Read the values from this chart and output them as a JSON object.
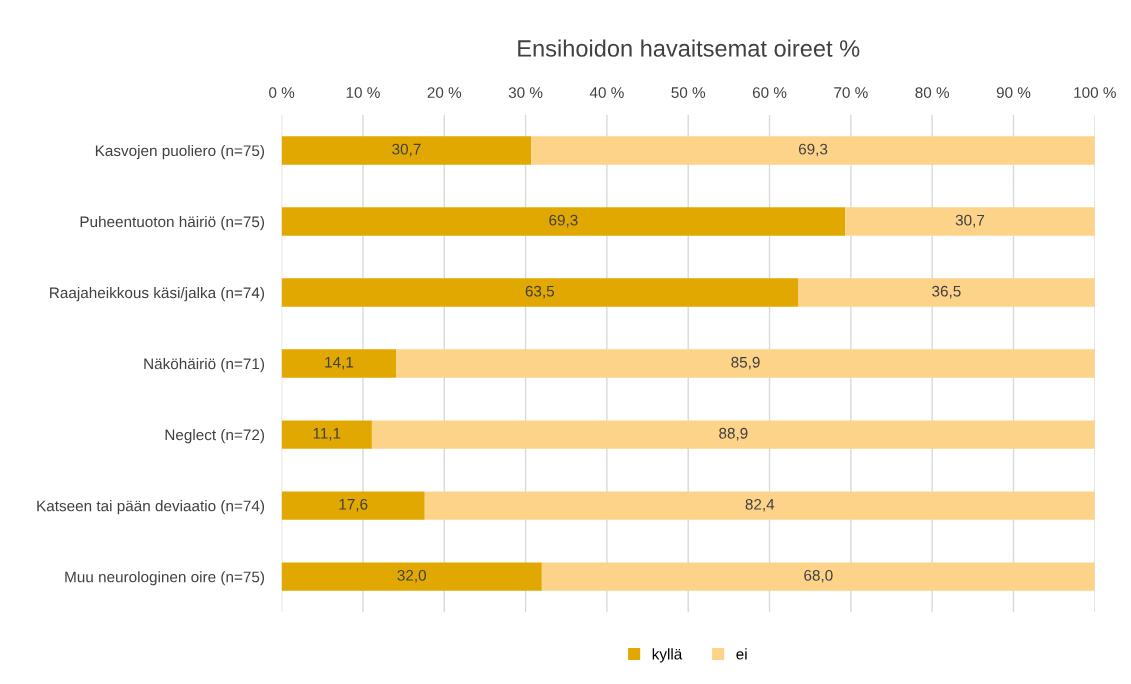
{
  "chart_data": {
    "type": "bar",
    "orientation": "horizontal",
    "stacked": true,
    "title": "Ensihoidon havaitsemat oireet %",
    "categories": [
      "Kasvojen puoliero (n=75)",
      "Puheentuoton häiriö (n=75)",
      "Raajaheikkous käsi/jalka (n=74)",
      "Näköhäiriö (n=71)",
      "Neglect (n=72)",
      "Katseen tai pään deviaatio (n=74)",
      "Muu neurologinen oire (n=75)"
    ],
    "series": [
      {
        "name": "kyllä",
        "color": "#e0a800",
        "values": [
          30.7,
          69.3,
          63.5,
          14.1,
          11.1,
          17.6,
          32.0
        ],
        "value_labels": [
          "30,7",
          "69,3",
          "63,5",
          "14,1",
          "11,1",
          "17,6",
          "32,0"
        ]
      },
      {
        "name": "ei",
        "color": "#fdd38a",
        "values": [
          69.3,
          30.7,
          36.5,
          85.9,
          88.9,
          82.4,
          68.0
        ],
        "value_labels": [
          "69,3",
          "30,7",
          "36,5",
          "85,9",
          "88,9",
          "82,4",
          "68,0"
        ]
      }
    ],
    "xlim": [
      0,
      100
    ],
    "xticks": [
      {
        "value": 0,
        "label": "0 %"
      },
      {
        "value": 10,
        "label": "10 %"
      },
      {
        "value": 20,
        "label": "20 %"
      },
      {
        "value": 30,
        "label": "30 %"
      },
      {
        "value": 40,
        "label": "40 %"
      },
      {
        "value": 50,
        "label": "50 %"
      },
      {
        "value": 60,
        "label": "60 %"
      },
      {
        "value": 70,
        "label": "70 %"
      },
      {
        "value": 80,
        "label": "80 %"
      },
      {
        "value": 90,
        "label": "90 %"
      },
      {
        "value": 100,
        "label": "100 %"
      }
    ],
    "grid": "x",
    "legend": "bottom"
  }
}
